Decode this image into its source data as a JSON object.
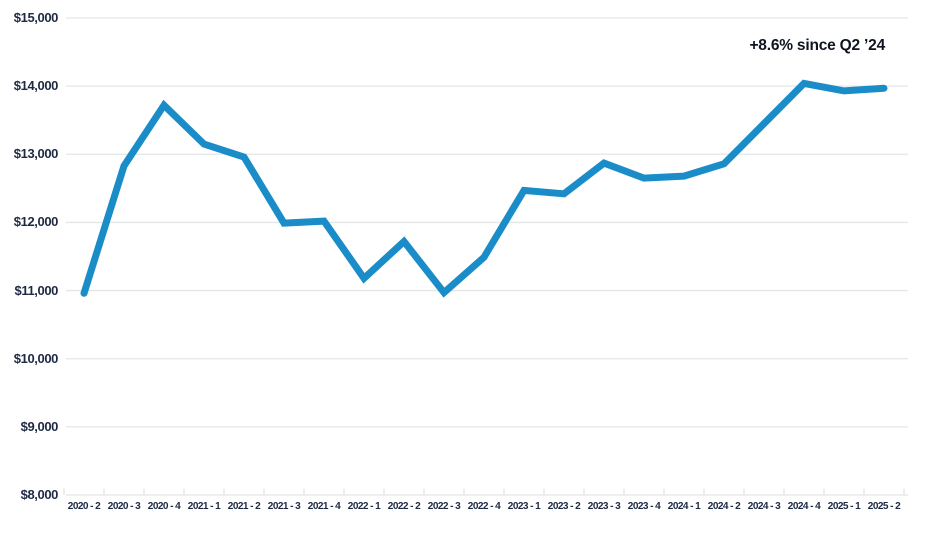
{
  "chart_data": {
    "type": "line",
    "title": "",
    "annotation": "+8.6% since Q2 ’24",
    "categories": [
      "2020 - 2",
      "2020 - 3",
      "2020 - 4",
      "2021 - 1",
      "2021 - 2",
      "2021 - 3",
      "2021 - 4",
      "2022 - 1",
      "2022 - 2",
      "2022 - 3",
      "2022 - 4",
      "2023 - 1",
      "2023 - 2",
      "2023 - 3",
      "2023 - 4",
      "2024 - 1",
      "2024 - 2",
      "2024 - 3",
      "2024 - 4",
      "2025 - 1",
      "2025 - 2"
    ],
    "values": [
      10960,
      12830,
      13720,
      13150,
      12960,
      11990,
      12020,
      11180,
      11720,
      10970,
      11490,
      12470,
      12420,
      12870,
      12650,
      12680,
      12860,
      13450,
      14040,
      13930,
      13970
    ],
    "xlabel": "",
    "ylabel": "",
    "ylim": [
      8000,
      15000
    ],
    "y_tick_labels": [
      "$15,000",
      "$14,000",
      "$13,000",
      "$12,000",
      "$11,000",
      "$10,000",
      "$9,000",
      "$8,000"
    ],
    "y_tick_values": [
      15000,
      14000,
      13000,
      12000,
      11000,
      10000,
      9000,
      8000
    ],
    "grid": "horizontal-only",
    "x_ticks": "between-categories",
    "legend_position": "none",
    "colors": {
      "line": "#1a8dc9",
      "grid": "#e3e7e7",
      "tick": "#d7dcdc",
      "axis_text": "#1e2a44",
      "annotation_text": "#0f1420",
      "background": "#ffffff"
    }
  }
}
